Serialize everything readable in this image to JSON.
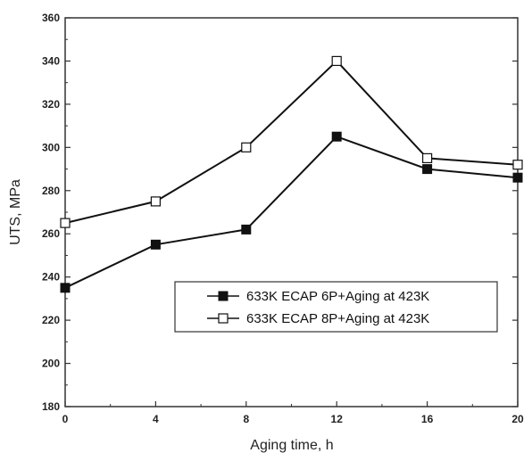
{
  "chart_data": {
    "type": "line",
    "xlabel": "Aging time, h",
    "ylabel": "UTS, MPa",
    "xlim": [
      0,
      20
    ],
    "ylim": [
      180,
      360
    ],
    "x_ticks": [
      0,
      4,
      8,
      12,
      16,
      20
    ],
    "y_ticks": [
      180,
      200,
      220,
      240,
      260,
      280,
      300,
      320,
      340,
      360
    ],
    "grid": false,
    "legend_position": "center-right",
    "series": [
      {
        "name": "633K ECAP 6P+Aging at 423K",
        "marker": "filled-square",
        "color": "#111111",
        "x": [
          0,
          4,
          8,
          12,
          16,
          20
        ],
        "y": [
          235,
          255,
          262,
          305,
          290,
          286
        ]
      },
      {
        "name": "633K ECAP 8P+Aging at 423K",
        "marker": "open-square",
        "color": "#111111",
        "x": [
          0,
          4,
          8,
          12,
          16,
          20
        ],
        "y": [
          265,
          275,
          300,
          340,
          295,
          292
        ]
      }
    ]
  }
}
